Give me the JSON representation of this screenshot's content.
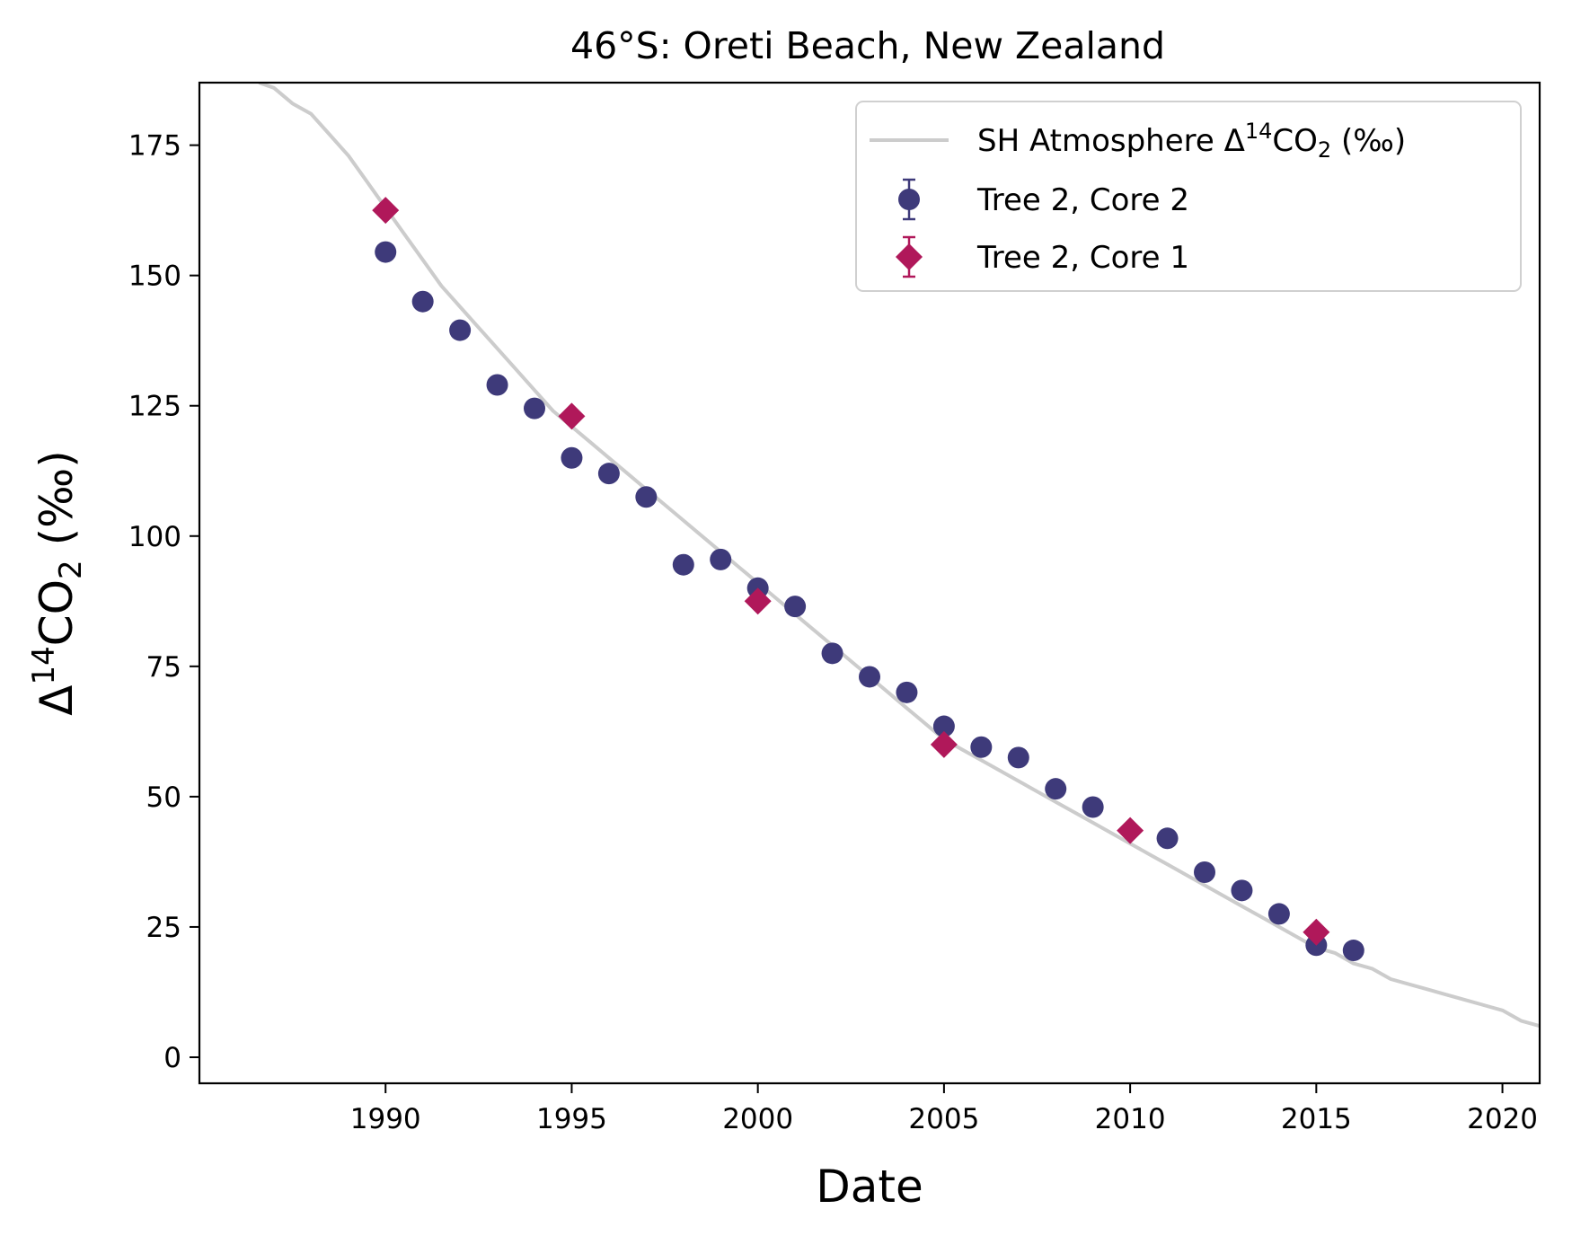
{
  "chart_data": {
    "type": "scatter",
    "title": "46°S: Oreti Beach, New Zealand",
    "xlabel": "Date",
    "ylabel": "Δ14CO2 (‰)",
    "ylabel_parts": {
      "main": "Δ",
      "sup": "14",
      "mid": "CO",
      "sub": "2",
      "tail": " (‰)"
    },
    "xlim": [
      1985.0,
      2021.0
    ],
    "ylim": [
      -5,
      187
    ],
    "xticks": [
      1990,
      1995,
      2000,
      2005,
      2010,
      2015,
      2020
    ],
    "yticks": [
      0,
      25,
      50,
      75,
      100,
      125,
      150,
      175
    ],
    "grid": false,
    "legend_position": "top-right",
    "series": [
      {
        "name": "SH Atmosphere Δ14CO2 (‰)",
        "name_parts": {
          "main": "SH Atmosphere Δ",
          "sup": "14",
          "mid": "CO",
          "sub": "2",
          "tail": " (‰)"
        },
        "kind": "line",
        "color": "#cccccc",
        "x": [
          1986.6,
          1987.0,
          1987.5,
          1988.0,
          1988.5,
          1989.0,
          1989.5,
          1990.0,
          1990.5,
          1991.0,
          1991.5,
          1992.0,
          1992.5,
          1993.0,
          1993.5,
          1994.0,
          1994.5,
          1995.0,
          1995.5,
          1996.0,
          1996.5,
          1997.0,
          1997.5,
          1998.0,
          1998.5,
          1999.0,
          1999.5,
          2000.0,
          2000.5,
          2001.0,
          2001.5,
          2002.0,
          2002.5,
          2003.0,
          2003.5,
          2004.0,
          2004.5,
          2005.0,
          2005.5,
          2006.0,
          2006.5,
          2007.0,
          2007.5,
          2008.0,
          2008.5,
          2009.0,
          2009.5,
          2010.0,
          2010.5,
          2011.0,
          2011.5,
          2012.0,
          2012.5,
          2013.0,
          2013.5,
          2014.0,
          2014.5,
          2015.0,
          2015.5,
          2016.0,
          2016.5,
          2017.0,
          2017.5,
          2018.0,
          2018.5,
          2019.0,
          2019.5,
          2020.0,
          2020.5,
          2021.0
        ],
        "y": [
          187,
          186,
          183,
          181,
          177,
          173,
          168,
          163,
          158,
          153,
          148,
          144,
          140,
          136,
          132,
          128,
          124,
          121,
          118,
          115,
          112,
          109,
          106,
          103,
          100,
          97,
          94,
          91,
          88,
          85,
          82,
          79,
          76,
          73,
          70,
          67,
          64,
          61,
          59,
          57,
          55,
          53,
          51,
          49,
          47,
          45,
          43,
          41,
          39,
          37,
          35,
          33,
          31,
          29,
          27,
          25,
          23,
          21,
          20,
          18,
          17,
          15,
          14,
          13,
          12,
          11,
          10,
          9,
          7,
          6
        ]
      },
      {
        "name": "Tree 2, Core 2",
        "kind": "points",
        "marker": "circle",
        "color": "#3e3a7a",
        "x": [
          1990,
          1991,
          1992,
          1993,
          1994,
          1995,
          1996,
          1997,
          1998,
          1999,
          2000,
          2001,
          2002,
          2003,
          2004,
          2005,
          2006,
          2007,
          2008,
          2009,
          2011,
          2012,
          2013,
          2014,
          2015,
          2016
        ],
        "y": [
          154.5,
          145,
          139.5,
          129,
          124.5,
          115,
          112,
          107.5,
          94.5,
          95.5,
          90,
          86.5,
          77.5,
          73,
          70,
          63.5,
          59.5,
          57.5,
          51.5,
          48,
          42,
          35.5,
          32,
          27.5,
          21.5,
          20.5
        ]
      },
      {
        "name": "Tree 2, Core 1",
        "kind": "points",
        "marker": "diamond",
        "color": "#b0185a",
        "x": [
          1990,
          1995,
          2000,
          2005,
          2010,
          2015
        ],
        "y": [
          162.5,
          123,
          87.5,
          60,
          43.5,
          24
        ]
      }
    ]
  }
}
